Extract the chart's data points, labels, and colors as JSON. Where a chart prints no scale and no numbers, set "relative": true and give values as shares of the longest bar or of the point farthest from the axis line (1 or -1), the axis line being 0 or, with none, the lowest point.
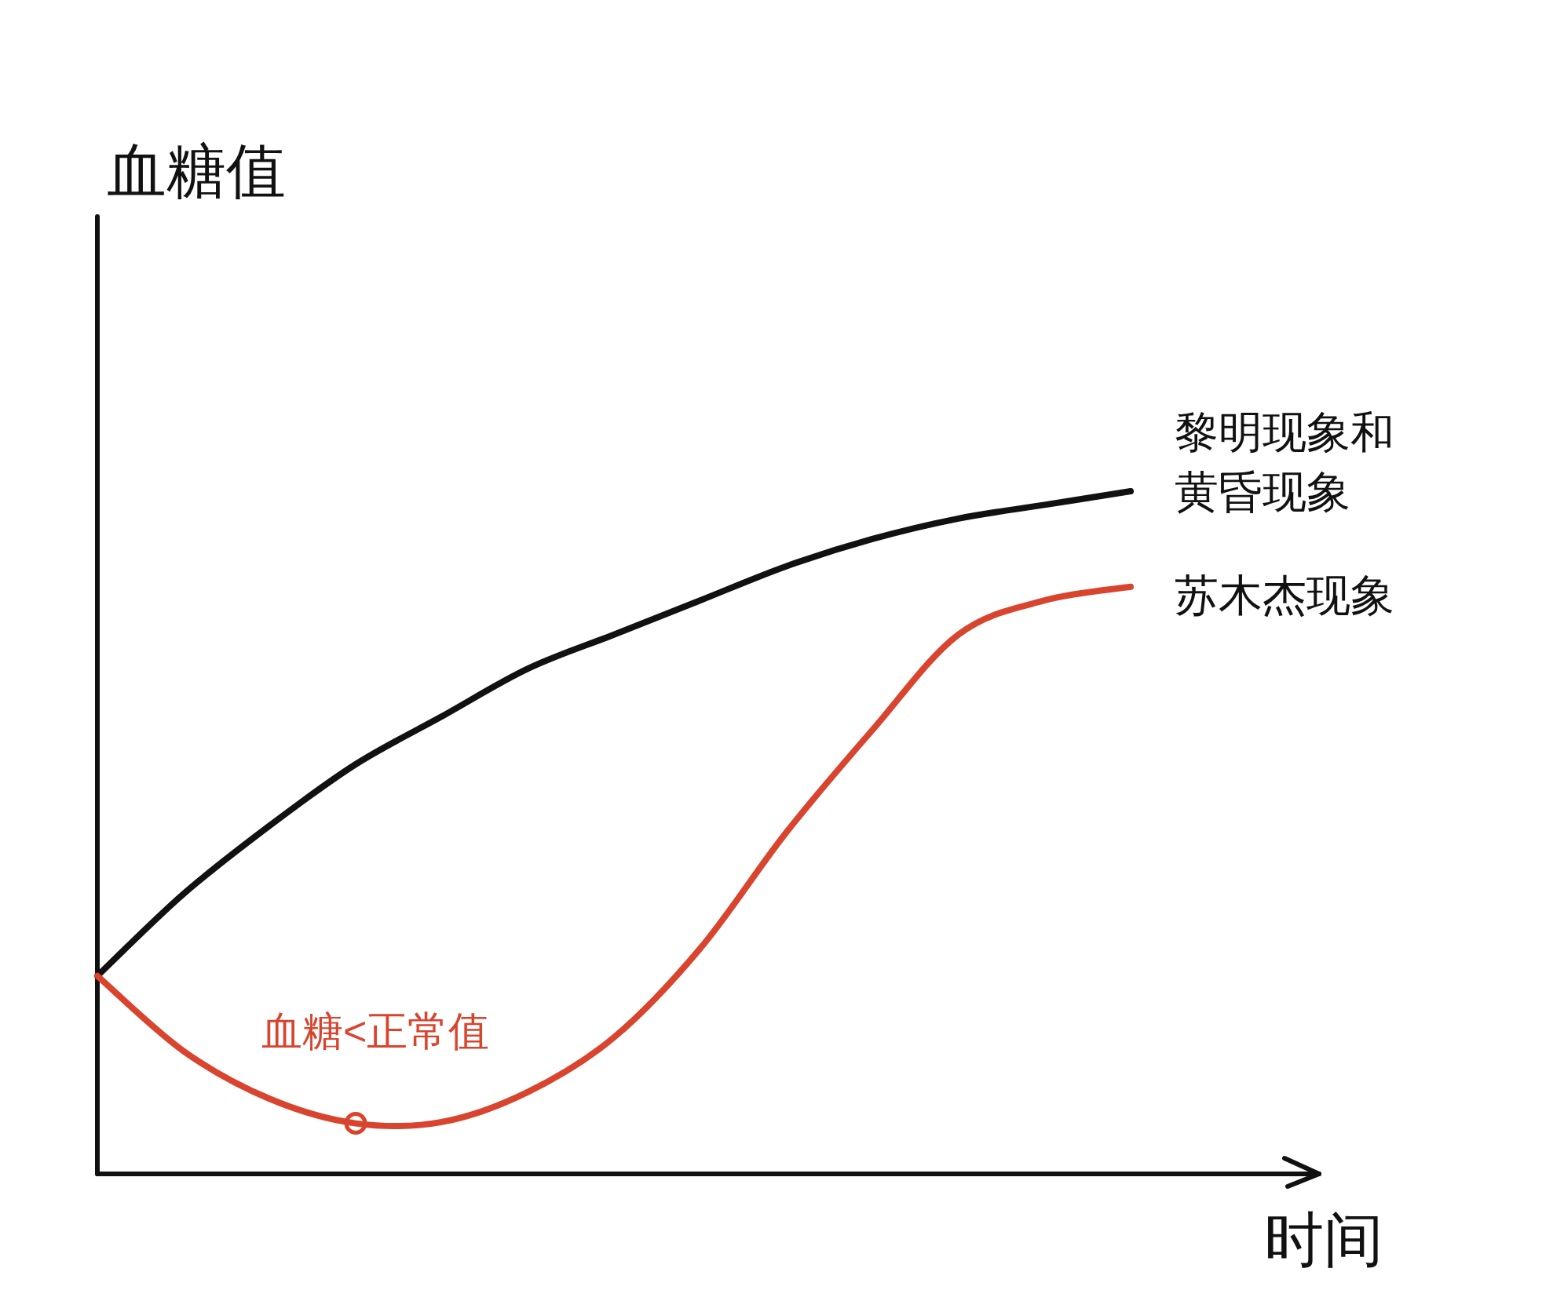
{
  "chart_data": {
    "type": "line",
    "relative": true,
    "ylabel": "血糖值",
    "xlabel": "时间",
    "categories": [
      null,
      null,
      null,
      null,
      null,
      null,
      null,
      null,
      null,
      null,
      null,
      null,
      null
    ],
    "series": [
      {
        "name": "黎明现象和黄昏现象",
        "color": "#111111",
        "values": [
          0.29,
          0.41,
          0.51,
          0.6,
          0.67,
          0.74,
          0.79,
          0.84,
          0.89,
          0.93,
          0.96,
          0.98,
          1
        ]
      },
      {
        "name": "苏木杰现象",
        "color": "#d9442e",
        "values": [
          0.29,
          0.18,
          0.11,
          0.074,
          0.076,
          0.12,
          0.2,
          0.33,
          0.5,
          0.65,
          0.79,
          0.84,
          0.86
        ]
      }
    ],
    "annotations": [
      {
        "text": "血糖<正常值",
        "y": 0.074
      }
    ]
  }
}
